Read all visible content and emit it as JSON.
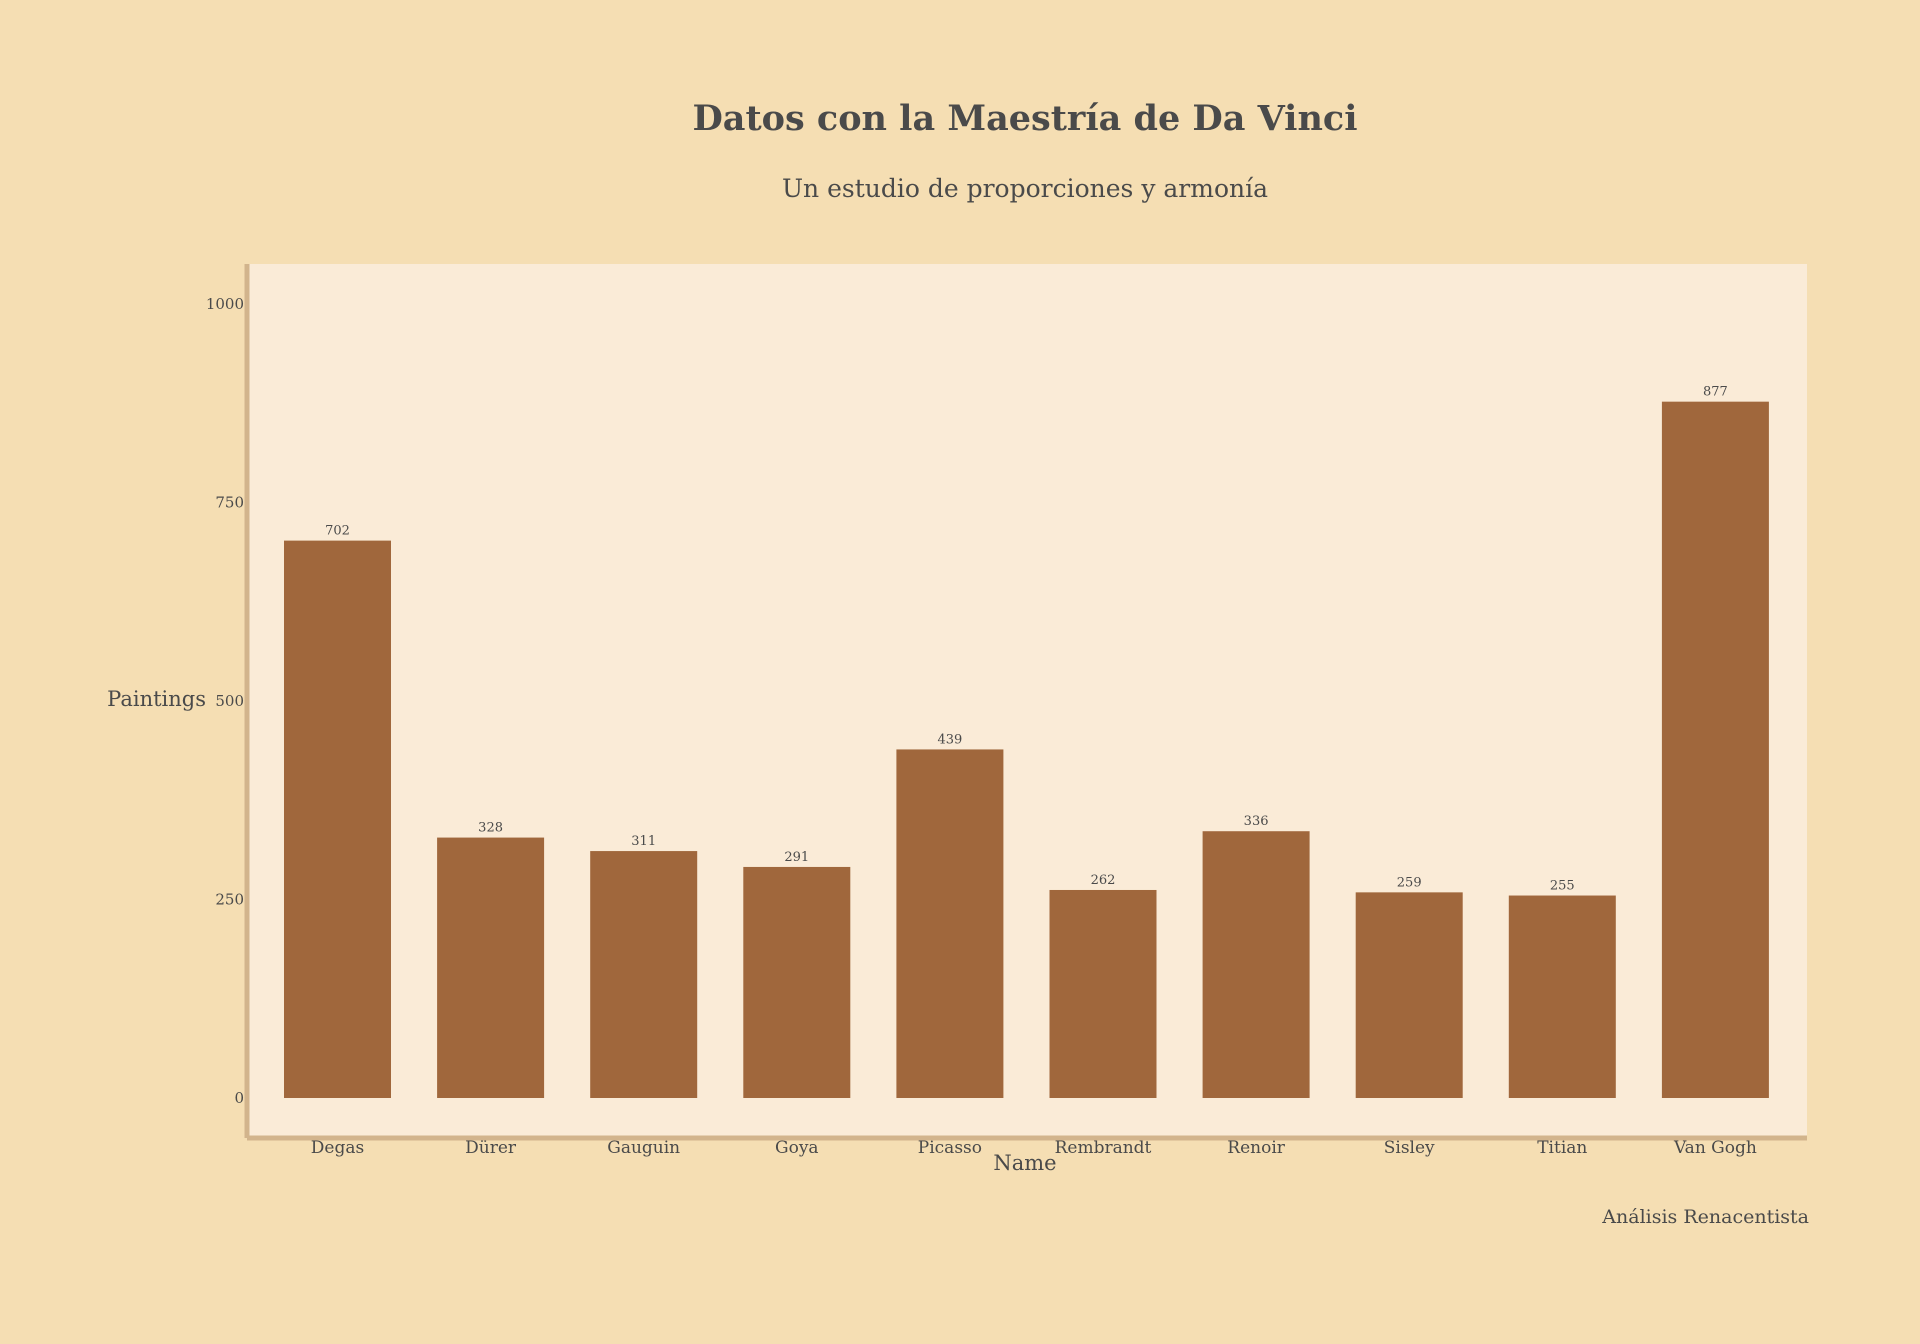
{
  "chart_data": {
    "type": "bar",
    "title": "Datos con la Maestría de Da Vinci",
    "subtitle": "Un estudio de proporciones y armonía",
    "xlabel": "Name",
    "ylabel": "Paintings",
    "categories": [
      "Degas",
      "Dürer",
      "Gauguin",
      "Goya",
      "Picasso",
      "Rembrandt",
      "Renoir",
      "Sisley",
      "Titian",
      "Van Gogh"
    ],
    "values": [
      702,
      328,
      311,
      291,
      439,
      262,
      336,
      259,
      255,
      877
    ],
    "ylim": [
      0,
      1050
    ],
    "yticks": [
      0,
      250,
      500,
      750,
      1000
    ],
    "grid": false,
    "legend": "none",
    "annotation": "Análisis Renacentista",
    "colors": {
      "background": "#f5deb3",
      "plot_background": "#faebd7",
      "bar": "#a0673c",
      "axis_line": "#d2b48c",
      "text": "#4a4a4a"
    }
  }
}
